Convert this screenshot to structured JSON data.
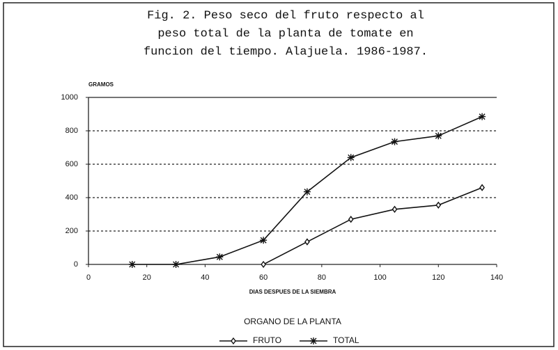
{
  "chart_data": {
    "type": "line",
    "title_lines": [
      "Fig. 2. Peso seco del fruto respecto al",
      "peso total de la planta de tomate en",
      "funcion del tiempo. Alajuela. 1986-1987."
    ],
    "y_axis_label": "GRAMOS",
    "x_axis_label": "DIAS DESPUES DE LA SIEMBRA",
    "legend_title": "ORGANO DE LA PLANTA",
    "x": [
      15,
      30,
      45,
      60,
      75,
      90,
      105,
      120,
      135
    ],
    "series": [
      {
        "name": "FRUTO",
        "color": "#111111",
        "marker": "diamond",
        "values": [
          null,
          null,
          null,
          0,
          135,
          270,
          330,
          355,
          460
        ]
      },
      {
        "name": "TOTAL",
        "color": "#111111",
        "marker": "asterisk",
        "values": [
          0,
          0,
          45,
          145,
          435,
          640,
          735,
          770,
          885
        ]
      }
    ],
    "xlim": [
      0,
      140
    ],
    "xticks": [
      0,
      20,
      40,
      60,
      80,
      100,
      120,
      140
    ],
    "ylim": [
      0,
      1000
    ],
    "yticks": [
      0,
      200,
      400,
      600,
      800,
      1000
    ],
    "grid": true,
    "legend": "bottom"
  }
}
